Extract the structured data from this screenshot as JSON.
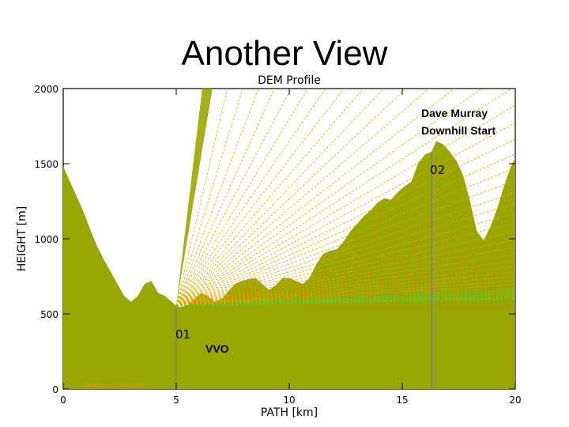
{
  "slide": {
    "title": "Another View"
  },
  "chart_data": {
    "type": "area",
    "title": "DEM Profile",
    "xlabel": "PATH [km]",
    "ylabel": "HEIGHT [m]",
    "xlim": [
      0,
      20
    ],
    "ylim": [
      0,
      2000
    ],
    "x_ticks": [
      "0",
      "5",
      "10",
      "15",
      "20"
    ],
    "y_ticks": [
      "0",
      "500",
      "1000",
      "1500",
      "2000"
    ],
    "grid": false,
    "colors": {
      "terrain": "#9aa600",
      "ray_near": "#c8b400",
      "ray_mid": "#f0a000",
      "ray_far": "#66cc33",
      "horizon": "#ff6a00",
      "observer_line": "#7f7f7f"
    },
    "profile": {
      "x": [
        0,
        0.3,
        0.6,
        0.9,
        1.2,
        1.5,
        1.8,
        2.1,
        2.4,
        2.7,
        3.0,
        3.3,
        3.6,
        3.9,
        4.2,
        4.5,
        4.8,
        5.0,
        5.2,
        5.5,
        5.8,
        6.1,
        6.4,
        6.7,
        7.0,
        7.3,
        7.6,
        7.9,
        8.2,
        8.5,
        8.8,
        9.1,
        9.4,
        9.7,
        10.0,
        10.3,
        10.6,
        10.9,
        11.2,
        11.5,
        11.8,
        12.1,
        12.4,
        12.7,
        13.0,
        13.3,
        13.6,
        13.9,
        14.2,
        14.5,
        14.8,
        15.1,
        15.4,
        15.7,
        16.0,
        16.3,
        16.5,
        16.8,
        17.1,
        17.4,
        17.7,
        18.0,
        18.3,
        18.6,
        18.9,
        19.2,
        19.5,
        19.8,
        20.0
      ],
      "y": [
        1480,
        1380,
        1280,
        1180,
        1060,
        950,
        860,
        780,
        700,
        620,
        580,
        620,
        700,
        720,
        640,
        620,
        580,
        555,
        545,
        560,
        600,
        640,
        620,
        580,
        600,
        650,
        700,
        720,
        730,
        740,
        700,
        660,
        690,
        740,
        740,
        720,
        700,
        740,
        830,
        900,
        920,
        930,
        980,
        1050,
        1100,
        1150,
        1190,
        1240,
        1270,
        1260,
        1310,
        1350,
        1380,
        1500,
        1560,
        1580,
        1650,
        1630,
        1580,
        1520,
        1420,
        1250,
        1050,
        990,
        1080,
        1200,
        1350,
        1480,
        1540
      ]
    },
    "observers": [
      {
        "label": "01",
        "x_km": 5.0,
        "elev_m": 555,
        "name": "VVO"
      },
      {
        "label": "02",
        "x_km": 16.3,
        "elev_m": 1580,
        "name": "Dave Murray Downhill Start"
      }
    ],
    "annotations": [
      "Dave Murray",
      "Downhill Start",
      "VVO"
    ],
    "footer_note": "IDL Mon Jun 16 11:38:00 2003"
  }
}
